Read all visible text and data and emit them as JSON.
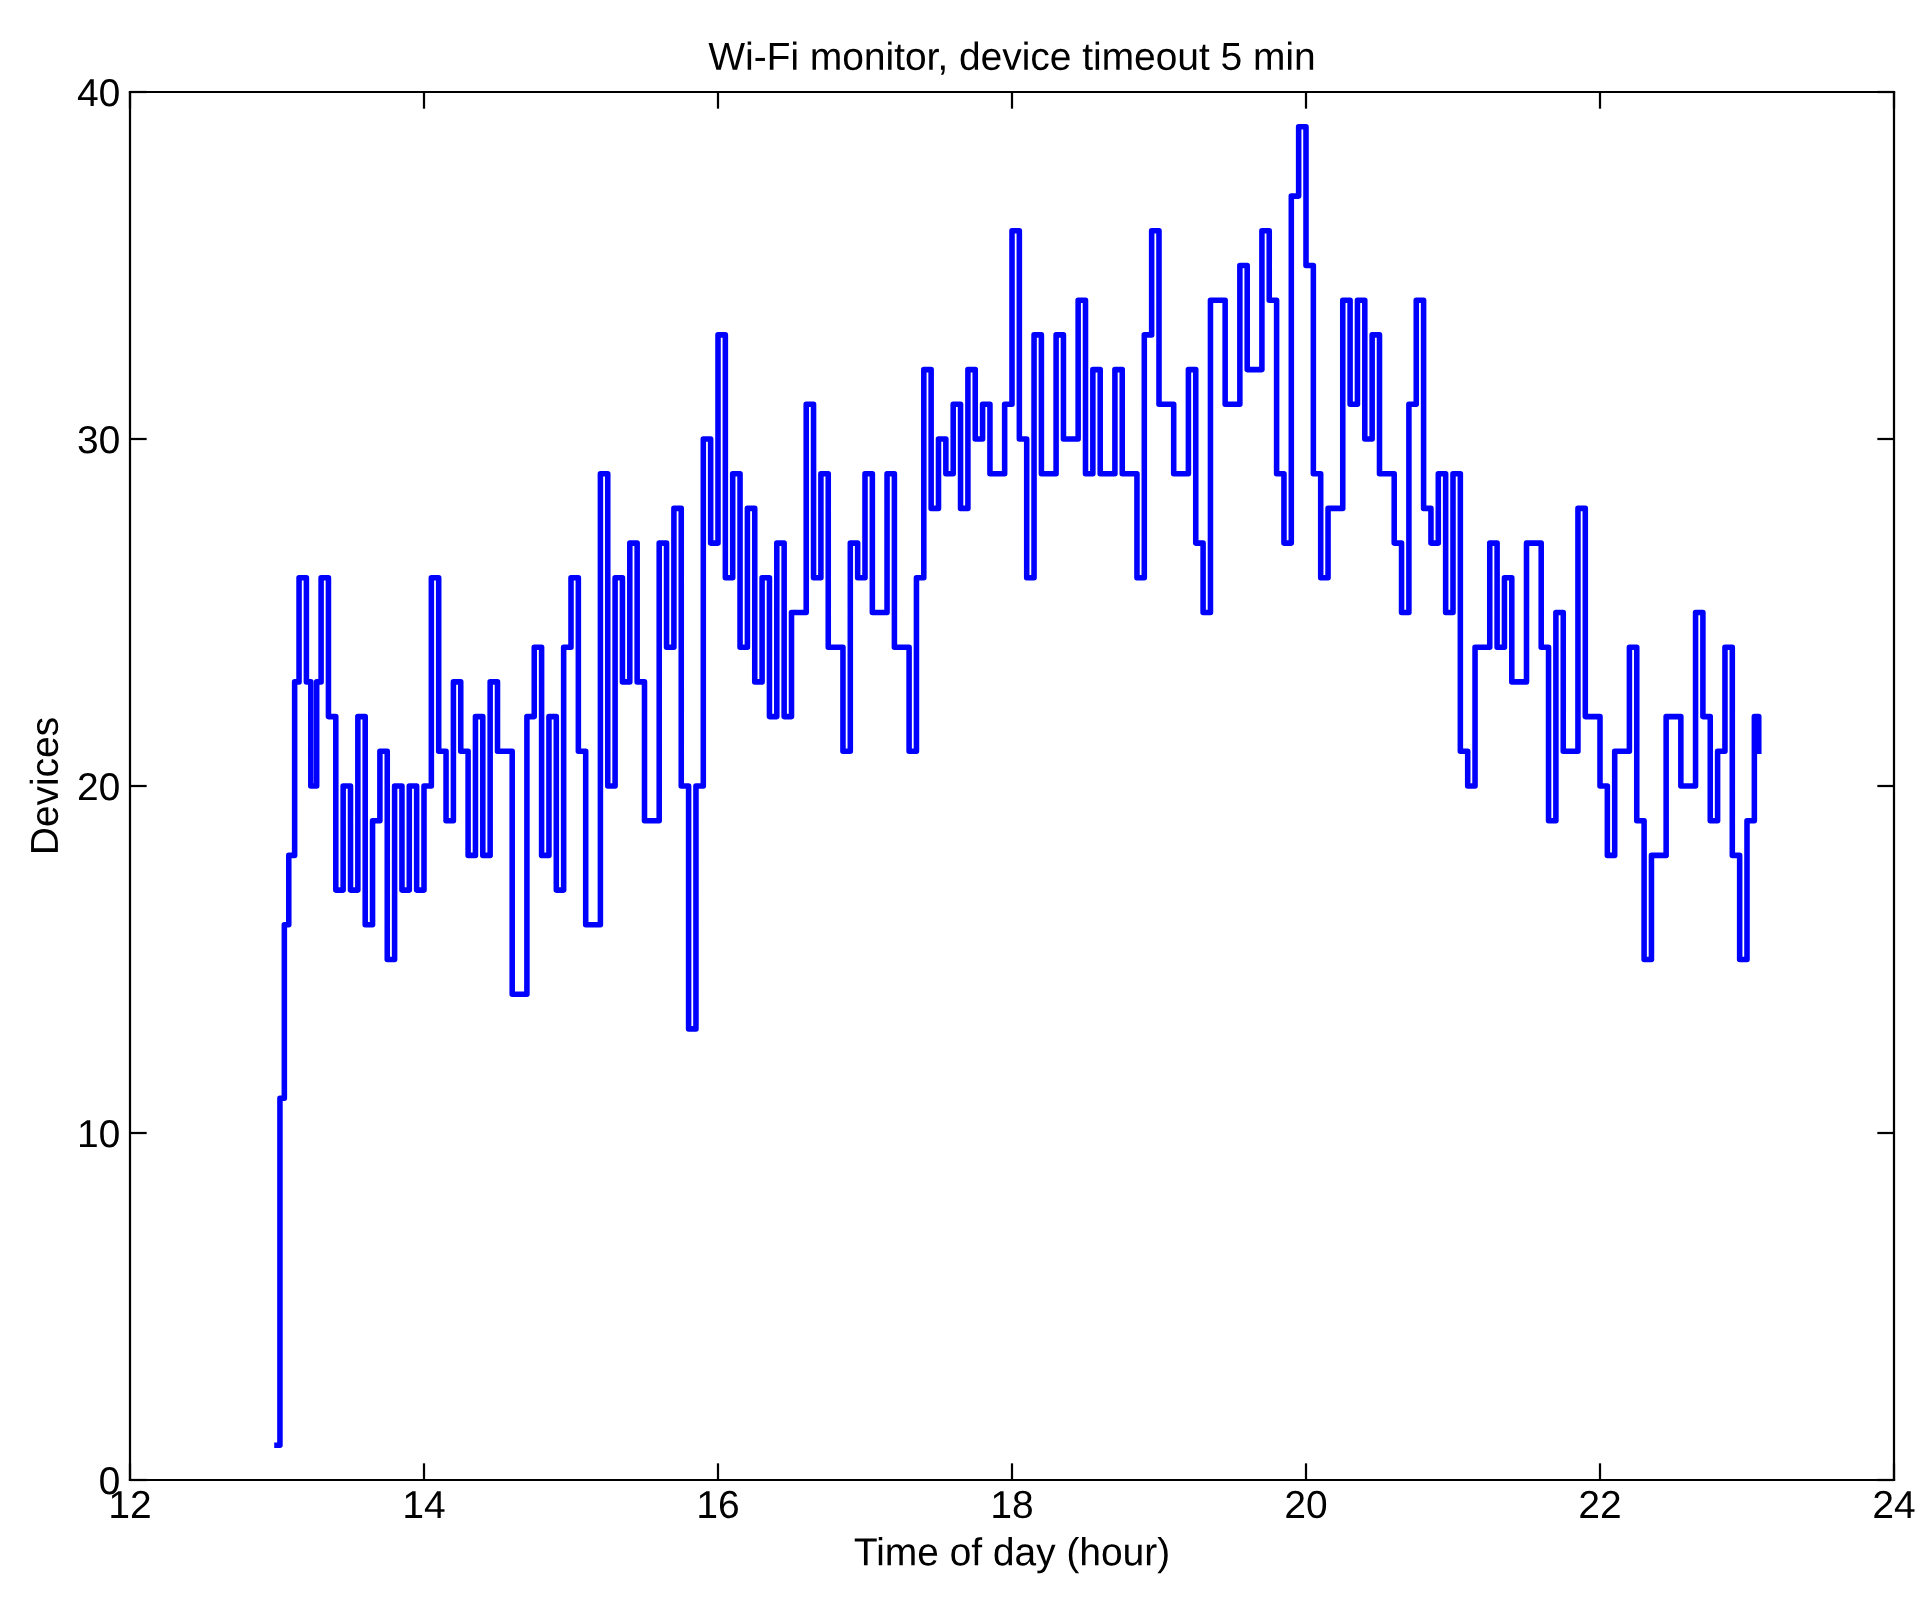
{
  "chart_data": {
    "type": "step",
    "title": "Wi-Fi monitor, device timeout 5 min",
    "xlabel": "Time of day (hour)",
    "ylabel": "Devices",
    "xlim": [
      12,
      24
    ],
    "xticks": [
      12,
      14,
      16,
      18,
      20,
      22,
      24
    ],
    "ylim": [
      0,
      40
    ],
    "yticks": [
      0,
      10,
      20,
      30,
      40
    ],
    "grid": false,
    "legend": false,
    "series": [
      {
        "color": "#0000ff",
        "x": [
          13.0,
          13.02,
          13.05,
          13.08,
          13.12,
          13.15,
          13.2,
          13.23,
          13.27,
          13.3,
          13.35,
          13.4,
          13.45,
          13.5,
          13.55,
          13.6,
          13.65,
          13.7,
          13.75,
          13.8,
          13.85,
          13.9,
          13.95,
          14.0,
          14.05,
          14.1,
          14.15,
          14.2,
          14.25,
          14.3,
          14.35,
          14.4,
          14.45,
          14.5,
          14.6,
          14.7,
          14.75,
          14.8,
          14.85,
          14.9,
          14.95,
          15.0,
          15.05,
          15.1,
          15.2,
          15.25,
          15.3,
          15.35,
          15.4,
          15.45,
          15.5,
          15.6,
          15.65,
          15.7,
          15.75,
          15.8,
          15.85,
          15.9,
          15.95,
          16.0,
          16.05,
          16.1,
          16.15,
          16.2,
          16.25,
          16.3,
          16.35,
          16.4,
          16.45,
          16.5,
          16.6,
          16.65,
          16.7,
          16.75,
          16.85,
          16.9,
          16.95,
          17.0,
          17.05,
          17.15,
          17.2,
          17.3,
          17.35,
          17.4,
          17.45,
          17.5,
          17.55,
          17.6,
          17.65,
          17.7,
          17.75,
          17.8,
          17.85,
          17.95,
          18.0,
          18.05,
          18.1,
          18.15,
          18.2,
          18.3,
          18.35,
          18.45,
          18.5,
          18.55,
          18.6,
          18.7,
          18.75,
          18.85,
          18.9,
          18.95,
          19.0,
          19.1,
          19.2,
          19.25,
          19.3,
          19.35,
          19.45,
          19.55,
          19.6,
          19.7,
          19.75,
          19.8,
          19.85,
          19.9,
          19.95,
          20.0,
          20.05,
          20.1,
          20.15,
          20.25,
          20.3,
          20.35,
          20.4,
          20.45,
          20.5,
          20.6,
          20.65,
          20.7,
          20.75,
          20.8,
          20.85,
          20.9,
          20.95,
          21.0,
          21.05,
          21.1,
          21.15,
          21.25,
          21.3,
          21.35,
          21.4,
          21.5,
          21.6,
          21.65,
          21.7,
          21.75,
          21.85,
          21.9,
          22.0,
          22.05,
          22.1,
          22.2,
          22.25,
          22.3,
          22.35,
          22.45,
          22.55,
          22.65,
          22.7,
          22.75,
          22.8,
          22.85,
          22.9,
          22.95,
          23.0,
          23.05,
          23.08
        ],
        "values": [
          1,
          11,
          16,
          18,
          23,
          26,
          23,
          20,
          23,
          26,
          22,
          17,
          20,
          17,
          22,
          16,
          19,
          21,
          15,
          20,
          17,
          20,
          17,
          20,
          26,
          21,
          19,
          23,
          21,
          18,
          22,
          18,
          23,
          21,
          14,
          22,
          24,
          18,
          22,
          17,
          24,
          26,
          21,
          16,
          29,
          20,
          26,
          23,
          27,
          23,
          19,
          27,
          24,
          28,
          20,
          13,
          20,
          30,
          27,
          33,
          26,
          29,
          24,
          28,
          23,
          26,
          22,
          27,
          22,
          25,
          31,
          26,
          29,
          24,
          21,
          27,
          26,
          29,
          25,
          29,
          24,
          21,
          26,
          32,
          28,
          30,
          29,
          31,
          28,
          32,
          30,
          31,
          29,
          31,
          36,
          30,
          26,
          33,
          29,
          33,
          30,
          34,
          29,
          32,
          29,
          32,
          29,
          26,
          33,
          36,
          31,
          29,
          32,
          27,
          25,
          34,
          31,
          35,
          32,
          36,
          34,
          29,
          27,
          37,
          39,
          35,
          29,
          26,
          28,
          34,
          31,
          34,
          30,
          33,
          29,
          27,
          25,
          31,
          34,
          28,
          27,
          29,
          25,
          29,
          21,
          20,
          24,
          27,
          24,
          26,
          23,
          27,
          24,
          19,
          25,
          21,
          28,
          22,
          20,
          18,
          21,
          24,
          19,
          15,
          18,
          22,
          20,
          25,
          22,
          19,
          21,
          24,
          18,
          15,
          19,
          22,
          21
        ]
      }
    ]
  }
}
